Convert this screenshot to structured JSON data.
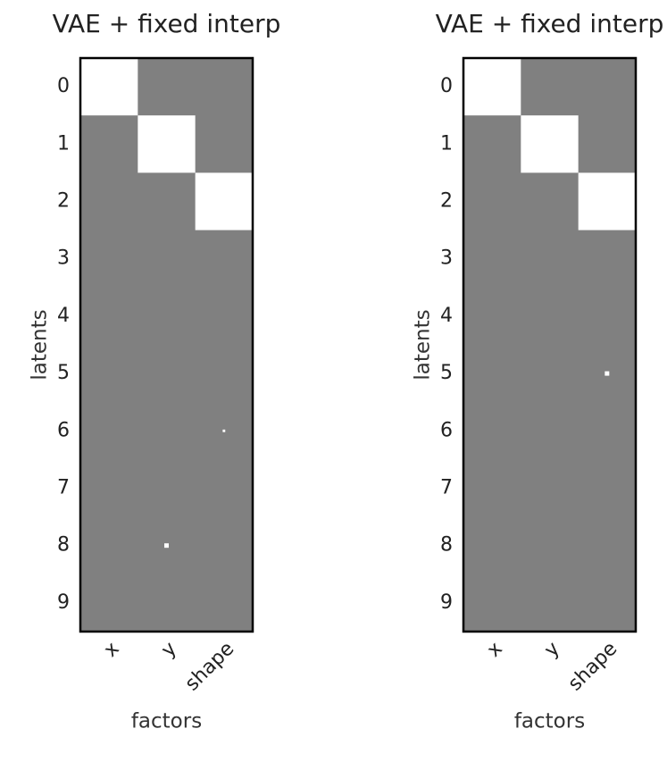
{
  "chart_data": [
    {
      "type": "hinton",
      "title": "VAE + fixed interp",
      "xlabel": "factors",
      "ylabel": "latents",
      "x_categories": [
        "x",
        "y",
        "shape"
      ],
      "y_categories": [
        0,
        1,
        2,
        3,
        4,
        5,
        6,
        7,
        8,
        9
      ],
      "background": "#808080",
      "color": "#ffffff",
      "values": [
        [
          1,
          0,
          0
        ],
        [
          0,
          1,
          0
        ],
        [
          0,
          0,
          1
        ],
        [
          0,
          0,
          0
        ],
        [
          0,
          0,
          0
        ],
        [
          0,
          0,
          0
        ],
        [
          0,
          0,
          0.002
        ],
        [
          0,
          0,
          0
        ],
        [
          0,
          0.006,
          0
        ],
        [
          0,
          0,
          0
        ]
      ]
    },
    {
      "type": "hinton",
      "title": "VAE + fixed interp",
      "xlabel": "factors",
      "ylabel": "latents",
      "x_categories": [
        "x",
        "y",
        "shape"
      ],
      "y_categories": [
        0,
        1,
        2,
        3,
        4,
        5,
        6,
        7,
        8,
        9
      ],
      "background": "#808080",
      "color": "#ffffff",
      "values": [
        [
          1,
          0,
          0
        ],
        [
          0,
          1,
          0
        ],
        [
          0,
          0,
          1
        ],
        [
          0,
          0,
          0
        ],
        [
          0,
          0,
          0
        ],
        [
          0,
          0,
          0.006
        ],
        [
          0,
          0,
          0
        ],
        [
          0,
          0,
          0
        ],
        [
          0,
          0,
          0
        ],
        [
          0,
          0,
          0
        ]
      ]
    }
  ]
}
